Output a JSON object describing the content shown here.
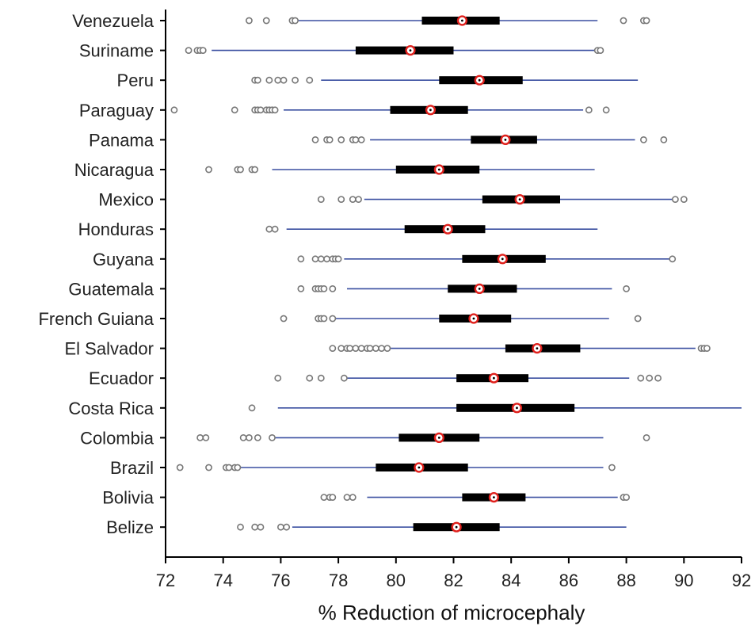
{
  "chart_data": {
    "type": "boxplot",
    "title": "",
    "xlabel": "% Reduction of microcephaly",
    "ylabel": "",
    "xlim": [
      72,
      92
    ],
    "xticks": [
      72,
      74,
      76,
      78,
      80,
      82,
      84,
      86,
      88,
      90,
      92
    ],
    "grid": false,
    "colors": {
      "whisker": "#3a4fa0",
      "box": "#000000",
      "median_ring": "#e0201c",
      "outlier": "#777777",
      "axis": "#000000"
    },
    "categories": [
      "Venezuela",
      "Suriname",
      "Peru",
      "Paraguay",
      "Panama",
      "Nicaragua",
      "Mexico",
      "Honduras",
      "Guyana",
      "Guatemala",
      "French Guiana",
      "El Salvador",
      "Ecuador",
      "Costa Rica",
      "Colombia",
      "Brazil",
      "Bolivia",
      "Belize"
    ],
    "series": [
      {
        "category": "Venezuela",
        "whisker_low": 76.6,
        "q1": 80.9,
        "median": 82.3,
        "q3": 83.6,
        "whisker_high": 87.0,
        "outliers": [
          74.9,
          75.5,
          76.4,
          76.5,
          87.9,
          88.6,
          88.7
        ]
      },
      {
        "category": "Suriname",
        "whisker_low": 73.6,
        "q1": 78.6,
        "median": 80.5,
        "q3": 82.0,
        "whisker_high": 87.0,
        "outliers": [
          72.8,
          73.1,
          73.2,
          73.3,
          87.0,
          87.1
        ]
      },
      {
        "category": "Peru",
        "whisker_low": 77.4,
        "q1": 81.5,
        "median": 82.9,
        "q3": 84.4,
        "whisker_high": 88.4,
        "outliers": [
          75.1,
          75.2,
          75.6,
          75.9,
          76.1,
          76.5,
          77.0
        ]
      },
      {
        "category": "Paraguay",
        "whisker_low": 76.1,
        "q1": 79.8,
        "median": 81.2,
        "q3": 82.5,
        "whisker_high": 86.5,
        "outliers": [
          72.3,
          74.4,
          75.1,
          75.2,
          75.3,
          75.5,
          75.6,
          75.7,
          75.8,
          86.7,
          87.3
        ]
      },
      {
        "category": "Panama",
        "whisker_low": 79.1,
        "q1": 82.6,
        "median": 83.8,
        "q3": 84.9,
        "whisker_high": 88.3,
        "outliers": [
          77.2,
          77.6,
          77.7,
          78.1,
          78.5,
          78.6,
          78.8,
          88.6,
          89.3
        ]
      },
      {
        "category": "Nicaragua",
        "whisker_low": 75.7,
        "q1": 80.0,
        "median": 81.5,
        "q3": 82.9,
        "whisker_high": 86.9,
        "outliers": [
          73.5,
          74.5,
          74.6,
          75.0,
          75.1
        ]
      },
      {
        "category": "Mexico",
        "whisker_low": 78.9,
        "q1": 83.0,
        "median": 84.3,
        "q3": 85.7,
        "whisker_high": 89.7,
        "outliers": [
          77.4,
          78.1,
          78.5,
          78.7,
          89.7,
          90.0
        ]
      },
      {
        "category": "Honduras",
        "whisker_low": 76.2,
        "q1": 80.3,
        "median": 81.8,
        "q3": 83.1,
        "whisker_high": 87.0,
        "outliers": [
          75.6,
          75.8
        ]
      },
      {
        "category": "Guyana",
        "whisker_low": 78.2,
        "q1": 82.3,
        "median": 83.7,
        "q3": 85.2,
        "whisker_high": 89.5,
        "outliers": [
          76.7,
          77.2,
          77.4,
          77.6,
          77.8,
          77.9,
          78.0,
          89.6
        ]
      },
      {
        "category": "Guatemala",
        "whisker_low": 78.3,
        "q1": 81.8,
        "median": 82.9,
        "q3": 84.2,
        "whisker_high": 87.5,
        "outliers": [
          76.7,
          77.2,
          77.3,
          77.4,
          77.5,
          77.8,
          88.0
        ]
      },
      {
        "category": "French Guiana",
        "whisker_low": 77.9,
        "q1": 81.5,
        "median": 82.7,
        "q3": 84.0,
        "whisker_high": 87.4,
        "outliers": [
          76.1,
          77.3,
          77.4,
          77.5,
          77.8,
          88.4
        ]
      },
      {
        "category": "El Salvador",
        "whisker_low": 79.7,
        "q1": 83.8,
        "median": 84.9,
        "q3": 86.4,
        "whisker_high": 90.4,
        "outliers": [
          77.8,
          78.1,
          78.3,
          78.4,
          78.6,
          78.8,
          79.0,
          79.1,
          79.3,
          79.5,
          79.7,
          90.6,
          90.7,
          90.8
        ]
      },
      {
        "category": "Ecuador",
        "whisker_low": 78.2,
        "q1": 82.1,
        "median": 83.4,
        "q3": 84.6,
        "whisker_high": 88.1,
        "outliers": [
          75.9,
          77.0,
          77.4,
          78.2,
          88.5,
          88.8,
          89.1
        ]
      },
      {
        "category": "Costa Rica",
        "whisker_low": 75.9,
        "q1": 82.1,
        "median": 84.2,
        "q3": 86.2,
        "whisker_high": 92.0,
        "outliers": [
          75.0
        ]
      },
      {
        "category": "Colombia",
        "whisker_low": 75.8,
        "q1": 80.1,
        "median": 81.5,
        "q3": 82.9,
        "whisker_high": 87.2,
        "outliers": [
          73.2,
          73.4,
          74.7,
          74.9,
          75.2,
          75.7,
          88.7
        ]
      },
      {
        "category": "Brazil",
        "whisker_low": 74.6,
        "q1": 79.3,
        "median": 80.8,
        "q3": 82.5,
        "whisker_high": 87.2,
        "outliers": [
          72.5,
          73.5,
          74.1,
          74.2,
          74.4,
          74.5,
          87.5
        ]
      },
      {
        "category": "Bolivia",
        "whisker_low": 79.0,
        "q1": 82.3,
        "median": 83.4,
        "q3": 84.5,
        "whisker_high": 87.7,
        "outliers": [
          77.5,
          77.7,
          77.8,
          78.3,
          78.5,
          87.9,
          88.0
        ]
      },
      {
        "category": "Belize",
        "whisker_low": 76.4,
        "q1": 80.6,
        "median": 82.1,
        "q3": 83.6,
        "whisker_high": 88.0,
        "outliers": [
          74.6,
          75.1,
          75.3,
          76.0,
          76.2
        ]
      }
    ]
  }
}
